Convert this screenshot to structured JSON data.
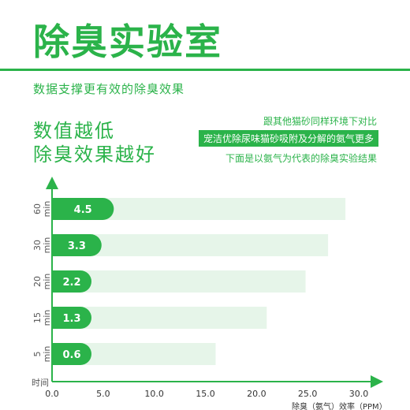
{
  "header": {
    "title": "除臭实验室",
    "subtitle": "数据支撑更有效的除臭效果"
  },
  "slogan": {
    "line1": "数值越低",
    "line2": "除臭效果越好"
  },
  "notes": {
    "line1": "跟其他猫砂同样环境下对比",
    "line2": "宠洁优除尿味猫砂吸附及分解的氨气更多",
    "line3": "下面是以氨气为代表的除臭实验结果"
  },
  "colors": {
    "accent": "#2bb34a",
    "bar_bg": "#e6f5e9",
    "light_bar": "#bfe6c7"
  },
  "chart_data": {
    "type": "bar",
    "orientation": "horizontal",
    "ylabel": "时间",
    "xlabel": "除臭（氨气）效率（PPM）",
    "xlim": [
      0,
      30
    ],
    "xticks": [
      "0.0",
      "5.0",
      "10.0",
      "15.0",
      "20.0",
      "25.0",
      "30.0"
    ],
    "categories": [
      {
        "num": "60",
        "unit": "min"
      },
      {
        "num": "30",
        "unit": "min"
      },
      {
        "num": "20",
        "unit": "min"
      },
      {
        "num": "15",
        "unit": "min"
      },
      {
        "num": "5",
        "unit": "min"
      }
    ],
    "series": [
      {
        "values": [
          4.5,
          3.3,
          2.2,
          1.3,
          0.6
        ],
        "labels": [
          "4.5",
          "3.3",
          "2.2",
          "1.3",
          "0.6"
        ]
      },
      {
        "values": [
          28.7,
          27.0,
          24.8,
          21.0,
          16.0
        ]
      }
    ]
  }
}
